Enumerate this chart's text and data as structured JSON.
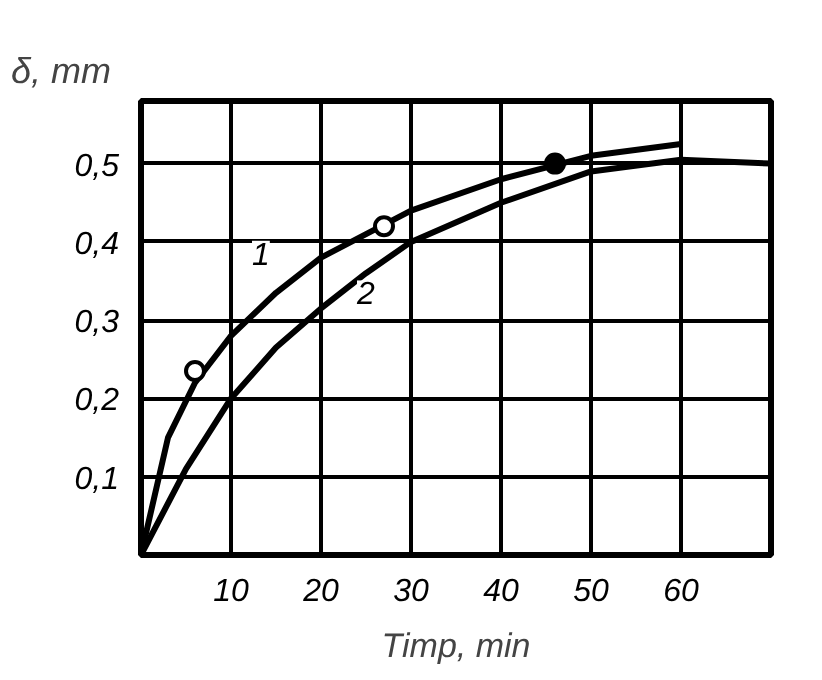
{
  "chart_data": {
    "type": "line",
    "xlabel": "Timp, min",
    "ylabel": "δ, mm",
    "xlim": [
      0,
      70
    ],
    "ylim": [
      0,
      0.58
    ],
    "xticks": [
      10,
      20,
      30,
      40,
      50,
      60
    ],
    "yticks": [
      {
        "value": 0.1,
        "label": "0,1"
      },
      {
        "value": 0.2,
        "label": "0,2"
      },
      {
        "value": 0.3,
        "label": "0,3"
      },
      {
        "value": 0.4,
        "label": "0,4"
      },
      {
        "value": 0.5,
        "label": "0,5"
      }
    ],
    "grid": true,
    "line_style": "solid",
    "series": [
      {
        "name": "1",
        "color": "#000000",
        "x": [
          0,
          3,
          6,
          10,
          15,
          20,
          25,
          30,
          40,
          50,
          60
        ],
        "values": [
          0,
          0.15,
          0.22,
          0.28,
          0.335,
          0.38,
          0.41,
          0.44,
          0.48,
          0.51,
          0.525
        ]
      },
      {
        "name": "2",
        "color": "#000000",
        "x": [
          0,
          5,
          10,
          15,
          20,
          25,
          30,
          40,
          50,
          60,
          70
        ],
        "values": [
          0,
          0.11,
          0.2,
          0.265,
          0.315,
          0.36,
          0.4,
          0.45,
          0.49,
          0.505,
          0.5
        ]
      },
      {
        "type": "scatter",
        "marker": "circle",
        "color": "#ffffff",
        "x": [
          6,
          27
        ],
        "values": [
          0.235,
          0.42
        ]
      },
      {
        "type": "scatter",
        "marker": "circle",
        "color": "#000000",
        "x": [
          46
        ],
        "values": [
          0.5
        ]
      }
    ]
  }
}
